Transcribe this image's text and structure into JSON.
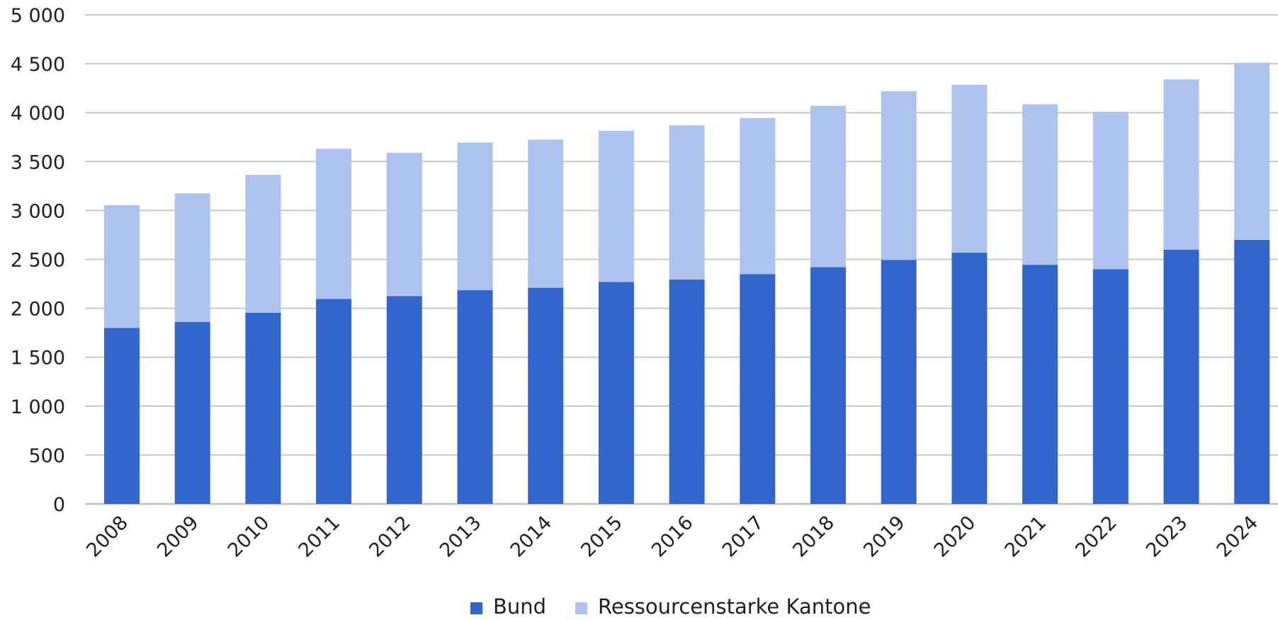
{
  "chart_data": {
    "type": "bar",
    "stacked": true,
    "categories": [
      "2008",
      "2009",
      "2010",
      "2011",
      "2012",
      "2013",
      "2014",
      "2015",
      "2016",
      "2017",
      "2018",
      "2019",
      "2020",
      "2021",
      "2022",
      "2023",
      "2024"
    ],
    "series": [
      {
        "name": "Bund",
        "color": "#3366cc",
        "values": [
          1800,
          1860,
          1955,
          2095,
          2125,
          2185,
          2210,
          2270,
          2295,
          2350,
          2420,
          2495,
          2570,
          2445,
          2400,
          2600,
          2700
        ]
      },
      {
        "name": "Ressourcenstarke Kantone",
        "color": "#adc2ec",
        "values": [
          1255,
          1315,
          1410,
          1535,
          1465,
          1510,
          1515,
          1545,
          1575,
          1595,
          1650,
          1725,
          1715,
          1640,
          1610,
          1740,
          1810
        ]
      }
    ],
    "y_ticks": [
      "0",
      "500",
      "1 000",
      "1 500",
      "2 000",
      "2 500",
      "3 000",
      "3 500",
      "4 000",
      "4 500",
      "5 000"
    ],
    "ylim": [
      0,
      5000
    ],
    "grid": true,
    "legend_position": "bottom-center"
  }
}
